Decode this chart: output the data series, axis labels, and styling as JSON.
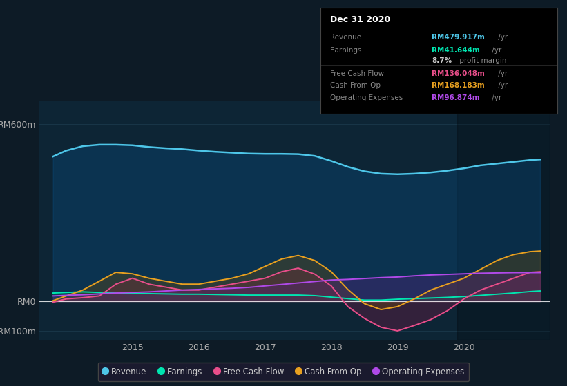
{
  "bg_color": "#0d1b26",
  "plot_bg_color": "#0d2535",
  "title_box_bg": "#0a0a0a",
  "title_box_border": "#333333",
  "ylim": [
    -130,
    680
  ],
  "xlim": [
    2013.6,
    2021.3
  ],
  "yticks_labels": [
    "RM600m",
    "RM0",
    "-RM100m"
  ],
  "yticks_values": [
    600,
    0,
    -100
  ],
  "xticks": [
    2015,
    2016,
    2017,
    2018,
    2019,
    2020
  ],
  "legend": [
    {
      "label": "Revenue",
      "color": "#4ec6e8"
    },
    {
      "label": "Earnings",
      "color": "#00e5b0"
    },
    {
      "label": "Free Cash Flow",
      "color": "#e84e8a"
    },
    {
      "label": "Cash From Op",
      "color": "#e8a020"
    },
    {
      "label": "Operating Expenses",
      "color": "#b04ae8"
    }
  ],
  "infobox": {
    "date": "Dec 31 2020",
    "label_color": "#888888",
    "rows": [
      {
        "label": "Revenue",
        "value": "RM479.917m",
        "vcolor": "#4ec6e8",
        "unit": " /yr"
      },
      {
        "label": "Earnings",
        "value": "RM41.644m",
        "vcolor": "#00e5b0",
        "unit": " /yr"
      },
      {
        "label": "",
        "value": "8.7%",
        "vcolor": "#cccccc",
        "unit": " profit margin"
      },
      {
        "label": "Free Cash Flow",
        "value": "RM136.048m",
        "vcolor": "#e84e8a",
        "unit": " /yr"
      },
      {
        "label": "Cash From Op",
        "value": "RM168.183m",
        "vcolor": "#e8a020",
        "unit": " /yr"
      },
      {
        "label": "Operating Expenses",
        "value": "RM96.874m",
        "vcolor": "#b04ae8",
        "unit": " /yr"
      }
    ]
  },
  "series": {
    "x": [
      2013.8,
      2014.0,
      2014.25,
      2014.5,
      2014.75,
      2015.0,
      2015.25,
      2015.5,
      2015.75,
      2016.0,
      2016.25,
      2016.5,
      2016.75,
      2017.0,
      2017.25,
      2017.5,
      2017.75,
      2018.0,
      2018.25,
      2018.5,
      2018.75,
      2019.0,
      2019.25,
      2019.5,
      2019.75,
      2020.0,
      2020.25,
      2020.5,
      2020.75,
      2021.0,
      2021.15
    ],
    "revenue": [
      490,
      510,
      525,
      530,
      530,
      528,
      522,
      518,
      515,
      510,
      506,
      503,
      500,
      499,
      499,
      498,
      492,
      475,
      455,
      440,
      432,
      430,
      432,
      436,
      442,
      450,
      460,
      466,
      472,
      478,
      480
    ],
    "earnings": [
      28,
      30,
      32,
      30,
      28,
      27,
      26,
      25,
      24,
      24,
      23,
      22,
      21,
      21,
      21,
      21,
      19,
      14,
      9,
      4,
      4,
      7,
      9,
      11,
      13,
      16,
      20,
      24,
      28,
      33,
      35
    ],
    "free_cash": [
      -3,
      8,
      12,
      18,
      58,
      78,
      58,
      48,
      38,
      38,
      48,
      58,
      68,
      78,
      100,
      112,
      92,
      52,
      -18,
      -58,
      -88,
      -100,
      -82,
      -62,
      -32,
      8,
      38,
      58,
      78,
      98,
      100
    ],
    "cash_from_op": [
      2,
      18,
      38,
      68,
      98,
      93,
      78,
      68,
      58,
      58,
      68,
      78,
      93,
      118,
      143,
      155,
      138,
      100,
      40,
      -8,
      -28,
      -18,
      8,
      38,
      58,
      78,
      108,
      138,
      158,
      168,
      170
    ],
    "op_expenses": [
      18,
      20,
      22,
      25,
      28,
      30,
      32,
      35,
      38,
      40,
      42,
      44,
      47,
      52,
      57,
      62,
      67,
      72,
      74,
      77,
      80,
      82,
      86,
      89,
      91,
      93,
      95,
      96,
      97,
      97,
      97
    ]
  }
}
